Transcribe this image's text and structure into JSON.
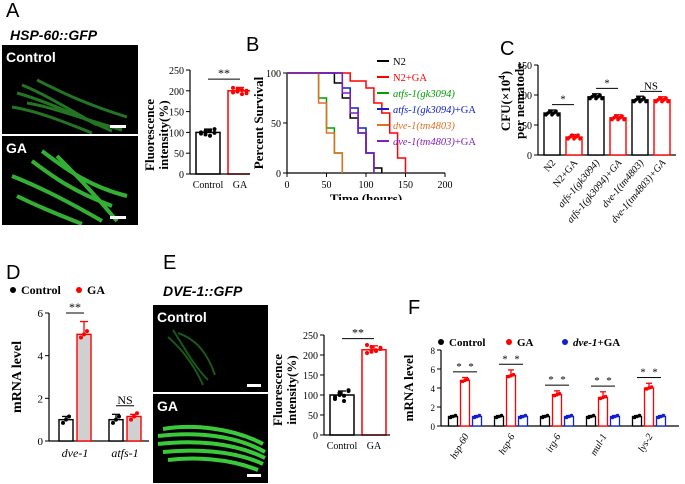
{
  "panels": {
    "A": {
      "letter": "A",
      "title": "HSP-60::GFP",
      "micro_labels": [
        "Control",
        "GA"
      ],
      "chart_ylabel_1": "Fluorescence",
      "chart_ylabel_2": "intensity(%)",
      "significance": "**"
    },
    "B": {
      "letter": "B"
    },
    "C": {
      "letter": "C",
      "ylabel_2": "per nematode"
    },
    "D": {
      "letter": "D"
    },
    "E": {
      "letter": "E",
      "title": "DVE-1::GFP",
      "micro_labels": [
        "Control",
        "GA"
      ],
      "chart_ylabel_1": "Fluorescence",
      "chart_ylabel_2": "intensity(%)",
      "significance": "**"
    },
    "F": {
      "letter": "F"
    }
  },
  "chart_data": [
    {
      "id": "A-bar",
      "type": "bar",
      "categories": [
        "Control",
        "GA"
      ],
      "values": [
        100,
        200
      ],
      "errors": [
        8,
        8
      ],
      "colors": [
        "#000000",
        "#ff0000"
      ],
      "ylim": [
        0,
        250
      ],
      "yticks": [
        "0",
        "50",
        "100",
        "150",
        "200",
        "250"
      ],
      "ytick_values": [
        0,
        50,
        100,
        150,
        200,
        250
      ],
      "ylabel": "Fluorescence intensity(%)",
      "annotation": "**",
      "points": [
        [
          97,
          103,
          92,
          108,
          100,
          95,
          105,
          99
        ],
        [
          196,
          205,
          192,
          200,
          207,
          198,
          202,
          194
        ]
      ]
    },
    {
      "id": "B-survival",
      "type": "line",
      "title": "",
      "xlabel": "Time (hours)",
      "ylabel": "Percent Survival",
      "xlim": [
        0,
        200
      ],
      "ylim": [
        0,
        100
      ],
      "xticks": [
        "0",
        "50",
        "100",
        "150",
        "200"
      ],
      "xtick_values": [
        0,
        50,
        100,
        150,
        200
      ],
      "yticks": [
        "0",
        "50",
        "100"
      ],
      "ytick_values": [
        0,
        50,
        100
      ],
      "legend_position": "top-right",
      "series": [
        {
          "name": "N2",
          "name_normal": "N2",
          "name_italic": "",
          "name_suffix": "",
          "color": "#000000",
          "x": [
            0,
            50,
            60,
            70,
            80,
            90,
            100,
            110,
            120
          ],
          "y": [
            100,
            100,
            90,
            75,
            55,
            40,
            20,
            5,
            0
          ]
        },
        {
          "name": "N2+GA",
          "name_normal": "N2+GA",
          "name_italic": "",
          "name_suffix": "",
          "color": "#ff0000",
          "x": [
            0,
            60,
            80,
            100,
            110,
            120,
            130,
            140,
            150
          ],
          "y": [
            100,
            100,
            92,
            85,
            70,
            60,
            40,
            15,
            0
          ]
        },
        {
          "name": "atfs-1(gk3094)",
          "name_normal": "",
          "name_italic": "atfs-1(gk3094)",
          "name_suffix": "",
          "color": "#00a000",
          "x": [
            0,
            30,
            40,
            50,
            60,
            70
          ],
          "y": [
            100,
            100,
            75,
            45,
            20,
            0
          ]
        },
        {
          "name": "atfs-1(gk3094)+GA",
          "name_normal": "",
          "name_italic": "atfs-1(gk3094)",
          "name_suffix": "+GA",
          "color": "#1020d0",
          "x": [
            0,
            60,
            70,
            80,
            90,
            100,
            110
          ],
          "y": [
            100,
            100,
            85,
            65,
            45,
            20,
            0
          ]
        },
        {
          "name": "dve-1(tm4803)",
          "name_normal": "",
          "name_italic": "dve-1(tm4803)",
          "name_suffix": "",
          "color": "#e07020",
          "x": [
            0,
            30,
            40,
            50,
            60,
            70
          ],
          "y": [
            100,
            100,
            70,
            40,
            20,
            0
          ]
        },
        {
          "name": "dve-1(tm4803)+GA",
          "name_normal": "",
          "name_italic": "dve-1(tm4803)",
          "name_suffix": "+GA",
          "color": "#8020c0",
          "x": [
            0,
            60,
            70,
            80,
            90,
            100,
            110
          ],
          "y": [
            100,
            100,
            80,
            60,
            40,
            20,
            0
          ]
        }
      ]
    },
    {
      "id": "C-bar",
      "type": "bar",
      "categories": [
        "N2",
        "N2+GA",
        "atfs-1(gk3094)",
        "atfs-1(gk3094)+GA",
        "dve-1(tm4803)",
        "dve-1(tm4803)+GA"
      ],
      "category_italic": [
        false,
        false,
        true,
        true,
        true,
        true
      ],
      "values": [
        70,
        30,
        97,
        62,
        92,
        92
      ],
      "errors": [
        5,
        4,
        5,
        5,
        6,
        5
      ],
      "colors": [
        "#000000",
        "#ff0000",
        "#000000",
        "#ff0000",
        "#000000",
        "#ff0000"
      ],
      "ylim": [
        0,
        150
      ],
      "yticks": [
        "0",
        "50",
        "100",
        "150"
      ],
      "ytick_values": [
        0,
        50,
        100,
        150
      ],
      "ylabel": "CFU(×10⁴) per nematode",
      "annotations": [
        {
          "pair": [
            0,
            1
          ],
          "text": "*"
        },
        {
          "pair": [
            2,
            3
          ],
          "text": "*"
        },
        {
          "pair": [
            4,
            5
          ],
          "text": "NS"
        }
      ]
    },
    {
      "id": "D-bar",
      "type": "bar",
      "groups": [
        "dve-1",
        "atfs-1"
      ],
      "series": [
        {
          "name": "Control",
          "values": [
            1.0,
            1.0
          ],
          "errors": [
            0.15,
            0.25
          ],
          "color": "#000000",
          "fill": "#ffffff"
        },
        {
          "name": "GA",
          "values": [
            5.0,
            1.15
          ],
          "errors": [
            0.6,
            0.1
          ],
          "color": "#ff0000",
          "fill": "#d0d0d0"
        }
      ],
      "ylim": [
        0,
        6
      ],
      "yticks": [
        "0",
        "2",
        "4",
        "6"
      ],
      "ytick_values": [
        0,
        2,
        4,
        6
      ],
      "ylabel": "mRNA level",
      "legend_position": "top",
      "annotations": [
        {
          "group": 0,
          "text": "**"
        },
        {
          "group": 1,
          "text": "NS"
        }
      ]
    },
    {
      "id": "E-bar",
      "type": "bar",
      "categories": [
        "Control",
        "GA"
      ],
      "values": [
        100,
        213
      ],
      "errors": [
        10,
        10
      ],
      "colors": [
        "#000000",
        "#ff0000"
      ],
      "ylim": [
        0,
        250
      ],
      "yticks": [
        "0",
        "50",
        "100",
        "150",
        "200",
        "250"
      ],
      "ytick_values": [
        0,
        50,
        100,
        150,
        200,
        250
      ],
      "ylabel": "Fluorescence intensity(%)",
      "annotation": "**",
      "points": [
        [
          90,
          105,
          98,
          110,
          95,
          100,
          85,
          112
        ],
        [
          205,
          220,
          210,
          218,
          225,
          208,
          212,
          215
        ]
      ]
    },
    {
      "id": "F-bar",
      "type": "bar",
      "groups": [
        "hsp-60",
        "hsp-6",
        "irg-6",
        "mul-1",
        "lys-2"
      ],
      "series": [
        {
          "name": "Control",
          "name_italic": "",
          "name_suffix": "Control",
          "values": [
            1.0,
            1.0,
            1.0,
            1.0,
            1.0
          ],
          "errors": [
            0.1,
            0.1,
            0.1,
            0.1,
            0.1
          ],
          "color": "#000000"
        },
        {
          "name": "GA",
          "name_italic": "",
          "name_suffix": "GA",
          "values": [
            4.8,
            5.3,
            3.3,
            3.0,
            4.0
          ],
          "errors": [
            0.3,
            0.6,
            0.4,
            0.6,
            0.5
          ],
          "color": "#ff0000"
        },
        {
          "name": "dve-1+GA",
          "name_italic": "dve-1",
          "name_suffix": "+GA",
          "values": [
            1.0,
            1.0,
            1.0,
            1.0,
            1.0
          ],
          "errors": [
            0.1,
            0.1,
            0.1,
            0.1,
            0.1
          ],
          "color": "#1020d0"
        }
      ],
      "ylim": [
        0,
        8
      ],
      "yticks": [
        "0",
        "2",
        "4",
        "6",
        "8"
      ],
      "ytick_values": [
        0,
        2,
        4,
        6,
        8
      ],
      "ylabel": "mRNA level",
      "legend_position": "top",
      "significance": "*"
    }
  ]
}
